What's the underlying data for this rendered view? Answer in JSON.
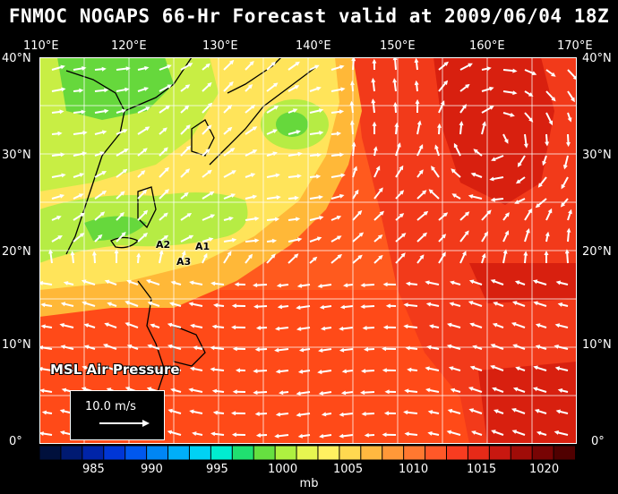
{
  "title": "FNMOC NOGAPS 66-Hr Forecast valid at 2009/06/04 18Z",
  "lon_labels": [
    "110°E",
    "120°E",
    "130°E",
    "140°E",
    "150°E",
    "160°E",
    "170°E"
  ],
  "lat_labels": [
    "40°N",
    "30°N",
    "20°N",
    "10°N",
    "0°"
  ],
  "field_label": "MSL Air Pressure",
  "reference_vector": "10.0 m/s",
  "storm_labels": [
    "A1",
    "A2",
    "A3"
  ],
  "colorbar_ticks": [
    "985",
    "990",
    "995",
    "1000",
    "1005",
    "1010",
    "1015",
    "1020"
  ],
  "colorbar_unit": "mb",
  "colorbar_colors": [
    "#00103c",
    "#001a72",
    "#0024a8",
    "#0036d6",
    "#0058ee",
    "#0086f4",
    "#00aef8",
    "#00d2f4",
    "#00ecd0",
    "#20e070",
    "#66e040",
    "#aef040",
    "#e6f650",
    "#fff060",
    "#ffd850",
    "#ffb840",
    "#ff9838",
    "#ff7830",
    "#ff5828",
    "#f83c20",
    "#e62a18",
    "#c81810",
    "#a00c08",
    "#780404",
    "#500000"
  ],
  "colors": {
    "background": "#000000",
    "land": "#000000",
    "grid": "#ffffff"
  }
}
